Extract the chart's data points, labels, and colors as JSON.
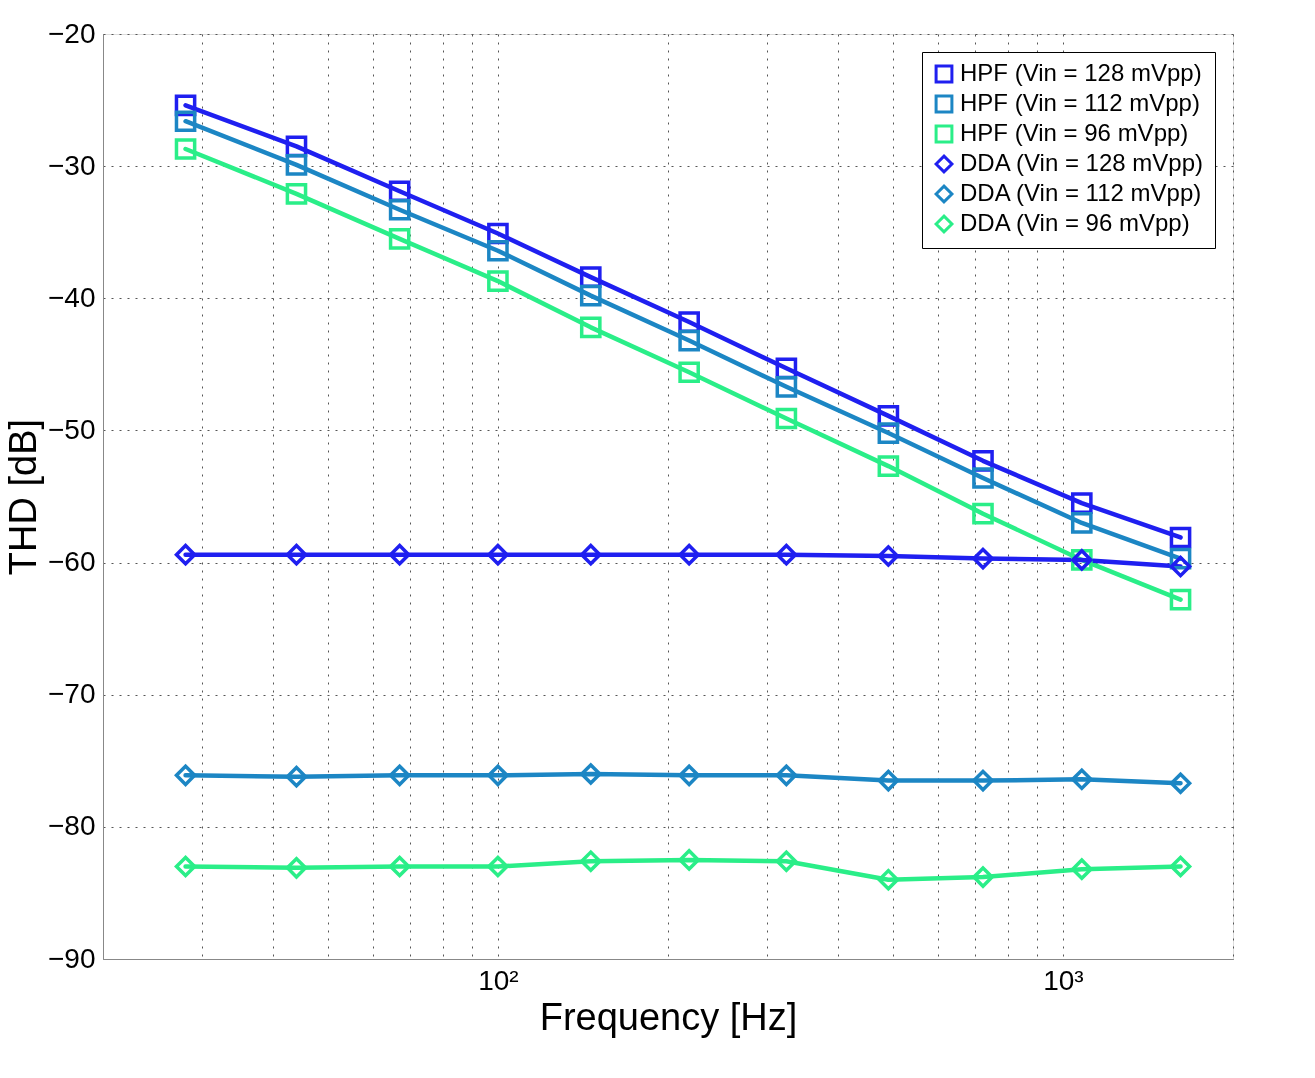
{
  "chart_data": {
    "type": "line",
    "xlabel": "Frequency [Hz]",
    "ylabel": "THD [dB]",
    "log": "x",
    "grid": true,
    "legend": "top right",
    "x": [
      28,
      44,
      67,
      100,
      146,
      218,
      324,
      491,
      722,
      1080,
      1615
    ],
    "xlim": [
      20,
      2000
    ],
    "xticks": [
      {
        "value": 20,
        "label": null
      },
      {
        "value": 30,
        "label": null
      },
      {
        "value": 40,
        "label": null
      },
      {
        "value": 50,
        "label": null
      },
      {
        "value": 60,
        "label": null
      },
      {
        "value": 70,
        "label": null
      },
      {
        "value": 80,
        "label": null
      },
      {
        "value": 90,
        "label": null
      },
      {
        "value": 100,
        "label": "10²"
      },
      {
        "value": 200,
        "label": null
      },
      {
        "value": 300,
        "label": null
      },
      {
        "value": 400,
        "label": null
      },
      {
        "value": 500,
        "label": null
      },
      {
        "value": 600,
        "label": null
      },
      {
        "value": 700,
        "label": null
      },
      {
        "value": 800,
        "label": null
      },
      {
        "value": 900,
        "label": null
      },
      {
        "value": 1000,
        "label": "10³"
      },
      {
        "value": 2000,
        "label": null
      }
    ],
    "ylim": [
      -90,
      -20
    ],
    "yticks": [
      {
        "value": -90,
        "label": "−90"
      },
      {
        "value": -80,
        "label": "−80"
      },
      {
        "value": -70,
        "label": "−70"
      },
      {
        "value": -60,
        "label": "−60"
      },
      {
        "value": -50,
        "label": "−50"
      },
      {
        "value": -40,
        "label": "−40"
      },
      {
        "value": -30,
        "label": "−30"
      },
      {
        "value": -20,
        "label": "−20"
      }
    ],
    "series": [
      {
        "name": "HPF (Vin = 128 mVpp)",
        "color": "#1f1ff0",
        "marker": "square",
        "values": [
          -25.4,
          -28.5,
          -31.9,
          -35.1,
          -38.4,
          -41.8,
          -45.3,
          -48.9,
          -52.3,
          -55.5,
          -58.1
        ]
      },
      {
        "name": "HPF (Vin = 112 mVpp)",
        "color": "#1c86c4",
        "marker": "square",
        "values": [
          -26.6,
          -29.9,
          -33.3,
          -36.4,
          -39.8,
          -43.2,
          -46.7,
          -50.2,
          -53.6,
          -57.0,
          -59.7
        ]
      },
      {
        "name": "HPF (Vin = 96 mVpp)",
        "color": "#2aee88",
        "marker": "square",
        "values": [
          -28.7,
          -32.1,
          -35.5,
          -38.7,
          -42.2,
          -45.6,
          -49.1,
          -52.7,
          -56.3,
          -59.8,
          -62.8
        ]
      },
      {
        "name": "DDA (Vin = 128 mVpp)",
        "color": "#1f1ff0",
        "marker": "diamond",
        "values": [
          -59.4,
          -59.4,
          -59.4,
          -59.4,
          -59.4,
          -59.4,
          -59.4,
          -59.5,
          -59.7,
          -59.8,
          -60.3
        ]
      },
      {
        "name": "DDA (Vin = 112 mVpp)",
        "color": "#1c86c4",
        "marker": "diamond",
        "values": [
          -76.1,
          -76.2,
          -76.1,
          -76.1,
          -76.0,
          -76.1,
          -76.1,
          -76.5,
          -76.5,
          -76.4,
          -76.7
        ]
      },
      {
        "name": "DDA (Vin = 96 mVpp)",
        "color": "#2aee88",
        "marker": "diamond",
        "values": [
          -83.0,
          -83.1,
          -83.0,
          -83.0,
          -82.6,
          -82.5,
          -82.6,
          -84.0,
          -83.8,
          -83.2,
          -83.0
        ]
      }
    ]
  }
}
